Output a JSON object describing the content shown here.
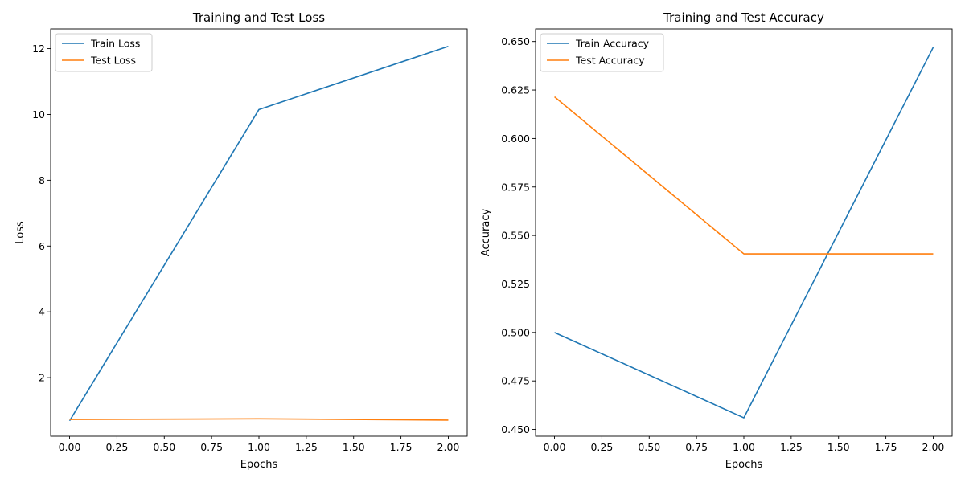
{
  "chart_data": [
    {
      "type": "line",
      "title": "Training and Test Loss",
      "xlabel": "Epochs",
      "ylabel": "Loss",
      "xlim": [
        -0.1,
        2.1
      ],
      "ylim": [
        0.22,
        12.6
      ],
      "xticks": [
        0.0,
        0.25,
        0.5,
        0.75,
        1.0,
        1.25,
        1.5,
        1.75,
        2.0
      ],
      "xtick_labels": [
        "0.00",
        "0.25",
        "0.50",
        "0.75",
        "1.00",
        "1.25",
        "1.50",
        "1.75",
        "2.00"
      ],
      "yticks": [
        2,
        4,
        6,
        8,
        10,
        12
      ],
      "ytick_labels": [
        "2",
        "4",
        "6",
        "8",
        "10",
        "12"
      ],
      "grid": false,
      "legend": "upper left",
      "x": [
        0,
        1,
        2
      ],
      "series": [
        {
          "name": "Train Loss",
          "color": "#1f77b4",
          "values": [
            0.69,
            10.15,
            12.07
          ]
        },
        {
          "name": "Test Loss",
          "color": "#ff7f0e",
          "values": [
            0.73,
            0.75,
            0.71
          ]
        }
      ]
    },
    {
      "type": "line",
      "title": "Training and Test Accuracy",
      "xlabel": "Epochs",
      "ylabel": "Accuracy",
      "xlim": [
        -0.1,
        2.1
      ],
      "ylim": [
        0.4465,
        0.6565
      ],
      "xticks": [
        0.0,
        0.25,
        0.5,
        0.75,
        1.0,
        1.25,
        1.5,
        1.75,
        2.0
      ],
      "xtick_labels": [
        "0.00",
        "0.25",
        "0.50",
        "0.75",
        "1.00",
        "1.25",
        "1.50",
        "1.75",
        "2.00"
      ],
      "yticks": [
        0.45,
        0.475,
        0.5,
        0.525,
        0.55,
        0.575,
        0.6,
        0.625,
        0.65
      ],
      "ytick_labels": [
        "0.450",
        "0.475",
        "0.500",
        "0.525",
        "0.550",
        "0.575",
        "0.600",
        "0.625",
        "0.650"
      ],
      "grid": false,
      "legend": "upper left",
      "x": [
        0,
        1,
        2
      ],
      "series": [
        {
          "name": "Train Accuracy",
          "color": "#1f77b4",
          "values": [
            0.5,
            0.456,
            0.647
          ]
        },
        {
          "name": "Test Accuracy",
          "color": "#ff7f0e",
          "values": [
            0.6215,
            0.5405,
            0.5405
          ]
        }
      ]
    }
  ]
}
